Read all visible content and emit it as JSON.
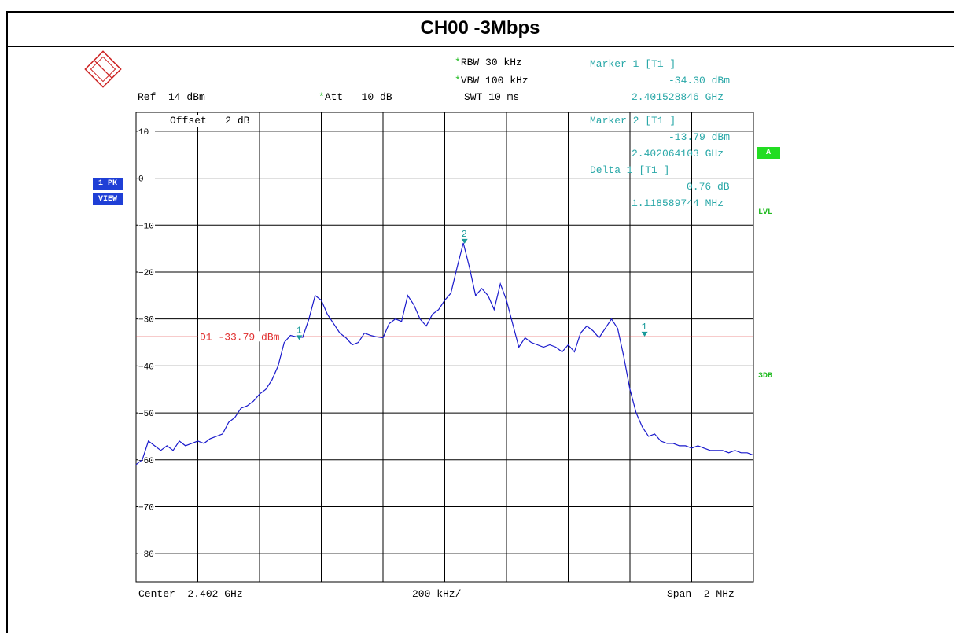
{
  "title": "CH00 -3Mbps",
  "header": {
    "ref": "Ref  14 dBm",
    "att_label": "Att",
    "att_value": "10 dB",
    "rbw": "RBW 30 kHz",
    "vbw": "VBW 100 kHz",
    "swt": "SWT 10 ms",
    "offset": "Offset   2 dB"
  },
  "markers": {
    "m1_title": "Marker 1 [T1 ]",
    "m1_level": "-34.30 dBm",
    "m1_freq": "2.401528846 GHz",
    "m2_title": "Marker 2 [T1 ]",
    "m2_level": "-13.79 dBm",
    "m2_freq": "2.402064103 GHz",
    "delta_title": "Delta 1 [T1 ]",
    "delta_level": "0.76 dB",
    "delta_freq": "1.118589744 MHz"
  },
  "side": {
    "trace_mode": "1 PK",
    "trace_view": "VIEW",
    "a_box": "A",
    "lvl": "LVL",
    "db3": "3DB"
  },
  "footer": {
    "center": "Center  2.402 GHz",
    "per_div": "200 kHz/",
    "span": "Span  2 MHz"
  },
  "display_line": {
    "label": "D1 -33.79 dBm",
    "level": -33.79
  },
  "colors": {
    "trace": "#1a1acc",
    "display_line": "#e03030",
    "marker": "#1a9a9a",
    "grid": "#000000"
  },
  "chart_data": {
    "type": "line",
    "title": "CH00 -3Mbps",
    "xlabel": "",
    "ylabel": "",
    "xlim": [
      2.401,
      2.403
    ],
    "ylim": [
      -86,
      14
    ],
    "y_ticks": [
      10,
      0,
      -10,
      -20,
      -30,
      -40,
      -50,
      -60,
      -70,
      -80
    ],
    "x_unit": "GHz",
    "y_unit": "dBm",
    "grid": true,
    "series": [
      {
        "x": [
          2.401,
          2.40102,
          2.40104,
          2.40106,
          2.40108,
          2.4011,
          2.40112,
          2.40114,
          2.40116,
          2.40118,
          2.4012,
          2.40122,
          2.40124,
          2.40126,
          2.40128,
          2.4013,
          2.40132,
          2.40134,
          2.40136,
          2.40138,
          2.4014,
          2.40142,
          2.40144,
          2.40146,
          2.40148,
          2.4015,
          2.40152,
          2.40154,
          2.40156,
          2.40158,
          2.4016,
          2.40162,
          2.40164,
          2.40166,
          2.40168,
          2.4017,
          2.40172,
          2.40174,
          2.40176,
          2.40178,
          2.4018,
          2.40182,
          2.40184,
          2.40186,
          2.40188,
          2.4019,
          2.40192,
          2.40194,
          2.40196,
          2.40198,
          2.402,
          2.40202,
          2.40204,
          2.40206,
          2.40208,
          2.4021,
          2.40212,
          2.40214,
          2.40216,
          2.40218,
          2.4022,
          2.40222,
          2.40224,
          2.40226,
          2.40228,
          2.4023,
          2.40232,
          2.40234,
          2.40236,
          2.40238,
          2.4024,
          2.40242,
          2.40244,
          2.40246,
          2.40248,
          2.4025,
          2.40252,
          2.40254,
          2.40256,
          2.40258,
          2.4026,
          2.40262,
          2.40264,
          2.40266,
          2.40268,
          2.4027,
          2.40272,
          2.40274,
          2.40276,
          2.40278,
          2.4028,
          2.40282,
          2.40284,
          2.40286,
          2.40288,
          2.4029,
          2.40292,
          2.40294,
          2.40296,
          2.40298,
          2.403
        ],
        "values": [
          -61,
          -60,
          -56,
          -57,
          -58,
          -57,
          -58,
          -56,
          -57,
          -56.5,
          -56,
          -56.5,
          -55.5,
          -55,
          -54.5,
          -52,
          -51,
          -49,
          -48.5,
          -47.5,
          -46,
          -45,
          -43,
          -40,
          -35,
          -33.5,
          -33.8,
          -33.9,
          -30,
          -25,
          -26,
          -29,
          -31,
          -33,
          -34,
          -35.5,
          -35,
          -33,
          -33.5,
          -33.8,
          -34,
          -31,
          -30,
          -30.5,
          -25,
          -27,
          -30,
          -31.5,
          -29,
          -28,
          -26,
          -24.5,
          -19,
          -13.8,
          -19,
          -25,
          -23.5,
          -25,
          -28,
          -22.5,
          -26,
          -31,
          -36,
          -34,
          -35,
          -35.5,
          -36,
          -35.5,
          -36,
          -37,
          -35.5,
          -37,
          -33,
          -31.5,
          -32.5,
          -34,
          -32,
          -30,
          -32,
          -38,
          -45,
          -50,
          -53,
          -55,
          -54.5,
          -56,
          -56.5,
          -56.5,
          -57,
          -57,
          -57.5,
          -57,
          -57.5,
          -58,
          -58,
          -58,
          -58.5,
          -58,
          -58.5,
          -58.5,
          -59
        ]
      }
    ],
    "markers": [
      {
        "label": "1",
        "x": 2.401528846,
        "y": -34.3
      },
      {
        "label": "2",
        "x": 2.402064103,
        "y": -13.79
      },
      {
        "label": "1",
        "x": 2.402647435,
        "y": -33.54
      }
    ]
  }
}
